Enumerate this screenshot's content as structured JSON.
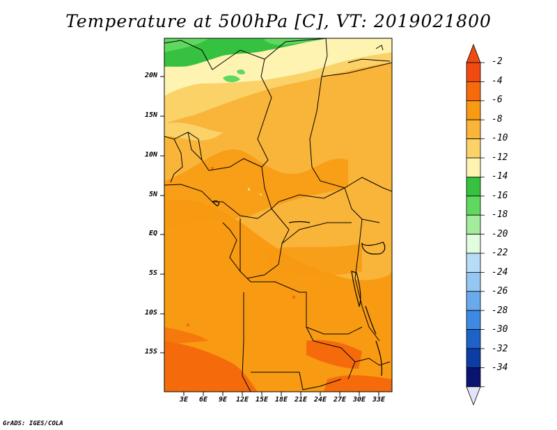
{
  "title": "Temperature at 500hPa [C], VT: 2019021800",
  "credit": "GrADS: IGES/COLA",
  "lat_labels": [
    "20N",
    "15N",
    "10N",
    "5N",
    "EQ",
    "5S",
    "10S",
    "15S"
  ],
  "lon_labels": [
    "3E",
    "6E",
    "9E",
    "12E",
    "15E",
    "18E",
    "21E",
    "24E",
    "27E",
    "30E",
    "33E"
  ],
  "colorbar": {
    "labels": [
      "-2",
      "-4",
      "-6",
      "-8",
      "-10",
      "-12",
      "-14",
      "-16",
      "-18",
      "-20",
      "-22",
      "-24",
      "-26",
      "-28",
      "-30",
      "-32",
      "-34"
    ],
    "colors": [
      "#f04a12",
      "#f56b0c",
      "#f89a12",
      "#f9b43a",
      "#fbd268",
      "#fef3b0",
      "#36c240",
      "#60d860",
      "#a4ec9c",
      "#e2fce0",
      "#b8dcf6",
      "#94c8f0",
      "#6aaaec",
      "#3e8ae2",
      "#1e62c8",
      "#0c3ca4",
      "#0a1370"
    ],
    "top_triangle": "#f04a12",
    "bottom_triangle": "#e2e4f8"
  }
}
